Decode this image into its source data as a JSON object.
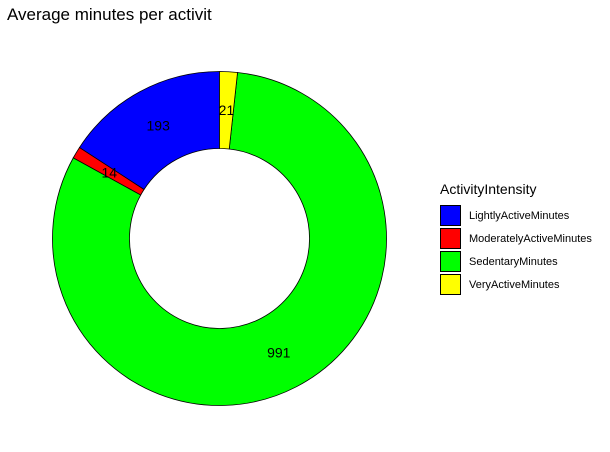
{
  "chart_data": {
    "type": "pie",
    "title": "Average minutes per activit",
    "legend": {
      "title": "ActivityIntensity",
      "placement": "right"
    },
    "categories": [
      "LightlyActiveMinutes",
      "ModeratelyActiveMinutes",
      "SedentaryMinutes",
      "VeryActiveMinutes"
    ],
    "values": [
      193,
      14,
      991,
      21
    ],
    "labels": [
      "193",
      "14",
      "991",
      "21"
    ],
    "colors": [
      "#0000FF",
      "#FF0000",
      "#00FF00",
      "#FFFF00"
    ]
  }
}
